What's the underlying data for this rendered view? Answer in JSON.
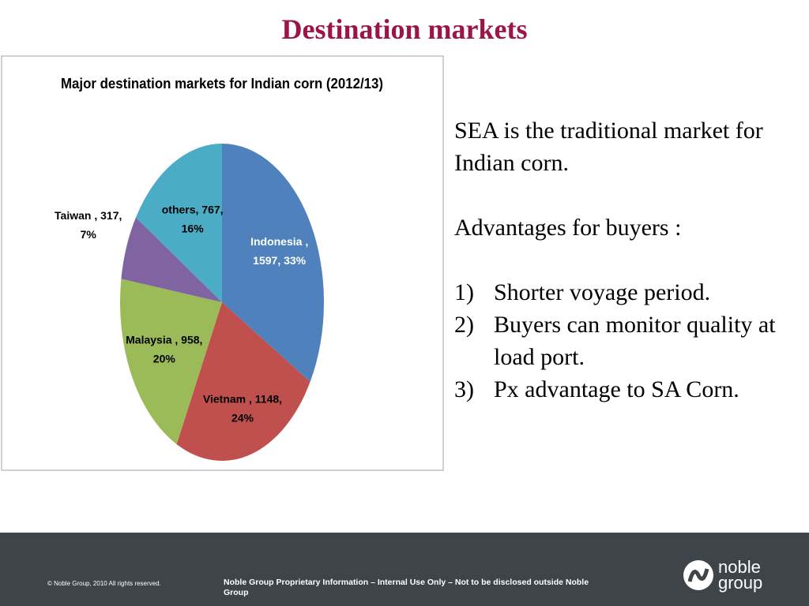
{
  "slide": {
    "title": "Destination markets",
    "body": {
      "intro": "SEA is the traditional market for Indian corn.",
      "subhead": "Advantages for buyers :",
      "points": [
        {
          "marker": "1)",
          "text": "Shorter voyage period."
        },
        {
          "marker": "2)",
          "text": "Buyers can monitor quality at load port."
        },
        {
          "marker": "3)",
          "text": "Px advantage to SA Corn."
        }
      ]
    },
    "footer": {
      "copyright": "© Noble Group, 2010 All rights reserved.",
      "notice": "Noble Group Proprietary Information – Internal Use Only – Not to be disclosed outside Noble Group",
      "logo": [
        "noble",
        "group"
      ]
    }
  },
  "chart_data": {
    "type": "pie",
    "title": "Major destination markets for Indian corn (2012/13)",
    "categories": [
      "Indonesia",
      "Vietnam",
      "Malaysia",
      "Taiwan",
      "others"
    ],
    "values": [
      1597,
      1148,
      958,
      317,
      767
    ],
    "value_labels": [
      [
        "Indonesia ,",
        "1597, 33%"
      ],
      [
        "Vietnam , 1148,",
        "24%"
      ],
      [
        "Malaysia  , 958,",
        "20%"
      ],
      [
        "Taiwan , 317,",
        "7%"
      ],
      [
        "others, 767,",
        "16%"
      ]
    ],
    "colors": [
      "#4f81bd",
      "#c0504d",
      "#9bbb59",
      "#8064a2",
      "#4bacc6"
    ]
  }
}
